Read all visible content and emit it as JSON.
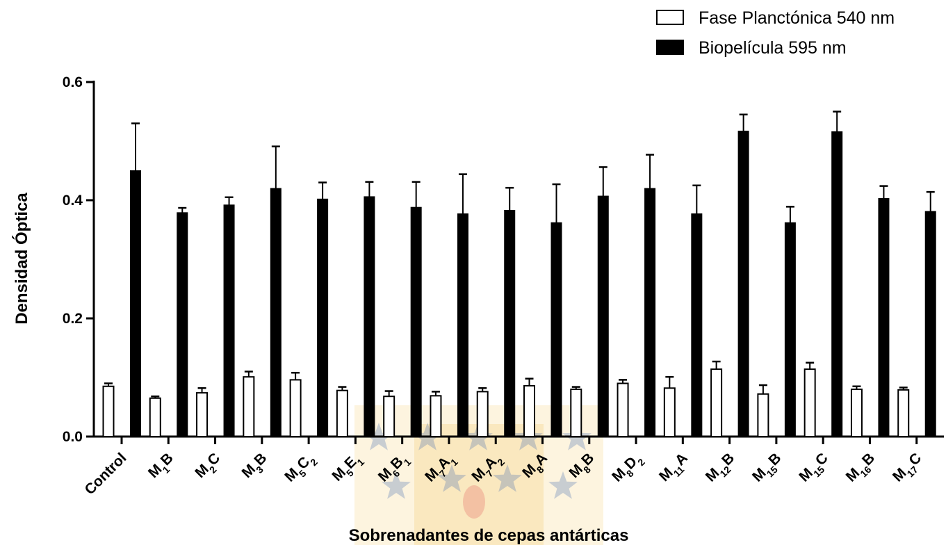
{
  "watermark_colors": {
    "blue": "#3f68ad",
    "gold": "#f2c14e",
    "red": "#d9363e"
  },
  "chart_data": {
    "type": "bar",
    "xlabel": "Sobrenadantes de cepas antárticas",
    "ylabel": "Densidad Óptica",
    "ylim": [
      0,
      0.6
    ],
    "yticks": [
      "0.0",
      "0.2",
      "0.4",
      "0.6"
    ],
    "legend_position": "top-right",
    "categories": [
      {
        "base": "Control",
        "parts": []
      },
      {
        "base": "M",
        "parts": [
          [
            "1",
            true
          ],
          [
            "B",
            false
          ]
        ]
      },
      {
        "base": "M",
        "parts": [
          [
            "2",
            true
          ],
          [
            "C",
            false
          ]
        ]
      },
      {
        "base": "M",
        "parts": [
          [
            "3",
            true
          ],
          [
            "B",
            false
          ]
        ]
      },
      {
        "base": "M",
        "parts": [
          [
            "5",
            true
          ],
          [
            "C",
            false
          ],
          [
            "2",
            true
          ]
        ]
      },
      {
        "base": "M",
        "parts": [
          [
            "5",
            true
          ],
          [
            "E",
            false
          ],
          [
            "1",
            true
          ]
        ]
      },
      {
        "base": "M",
        "parts": [
          [
            "6",
            true
          ],
          [
            "B",
            false
          ],
          [
            "1",
            true
          ]
        ]
      },
      {
        "base": "M",
        "parts": [
          [
            "7",
            true
          ],
          [
            "A",
            false
          ],
          [
            "1",
            true
          ]
        ]
      },
      {
        "base": "M",
        "parts": [
          [
            "7",
            true
          ],
          [
            "A",
            false
          ],
          [
            "2",
            true
          ]
        ]
      },
      {
        "base": "M",
        "parts": [
          [
            "8",
            true
          ],
          [
            "A",
            false
          ]
        ]
      },
      {
        "base": "M",
        "parts": [
          [
            "8",
            true
          ],
          [
            "B",
            false
          ]
        ]
      },
      {
        "base": "M",
        "parts": [
          [
            "8",
            true
          ],
          [
            "D",
            false
          ],
          [
            "2",
            true
          ]
        ]
      },
      {
        "base": "M",
        "parts": [
          [
            "11",
            true
          ],
          [
            "A",
            false
          ]
        ]
      },
      {
        "base": "M",
        "parts": [
          [
            "12",
            true
          ],
          [
            "B",
            false
          ]
        ]
      },
      {
        "base": "M",
        "parts": [
          [
            "15",
            true
          ],
          [
            "B",
            false
          ]
        ]
      },
      {
        "base": "M",
        "parts": [
          [
            "15",
            true
          ],
          [
            "C",
            false
          ]
        ]
      },
      {
        "base": "M",
        "parts": [
          [
            "16",
            true
          ],
          [
            "B",
            false
          ]
        ]
      },
      {
        "base": "M",
        "parts": [
          [
            "17",
            true
          ],
          [
            "C",
            false
          ]
        ]
      }
    ],
    "series": [
      {
        "name": "Fase Planctónica 540 nm",
        "fill": "#ffffff",
        "values": [
          0.085,
          0.065,
          0.074,
          0.101,
          0.096,
          0.078,
          0.068,
          0.069,
          0.076,
          0.086,
          0.08,
          0.09,
          0.082,
          0.114,
          0.072,
          0.114,
          0.08,
          0.079
        ],
        "errors": [
          0.005,
          0.003,
          0.008,
          0.009,
          0.012,
          0.006,
          0.009,
          0.007,
          0.006,
          0.012,
          0.004,
          0.006,
          0.019,
          0.013,
          0.015,
          0.011,
          0.005,
          0.004
        ]
      },
      {
        "name": "Biopelícula 595 nm",
        "fill": "#000000",
        "values": [
          0.45,
          0.379,
          0.392,
          0.42,
          0.402,
          0.406,
          0.388,
          0.377,
          0.383,
          0.362,
          0.407,
          0.42,
          0.377,
          0.517,
          0.362,
          0.516,
          0.403,
          0.381
        ],
        "errors": [
          0.08,
          0.008,
          0.013,
          0.071,
          0.028,
          0.025,
          0.043,
          0.067,
          0.038,
          0.065,
          0.049,
          0.057,
          0.048,
          0.028,
          0.027,
          0.034,
          0.021,
          0.033
        ]
      }
    ]
  }
}
